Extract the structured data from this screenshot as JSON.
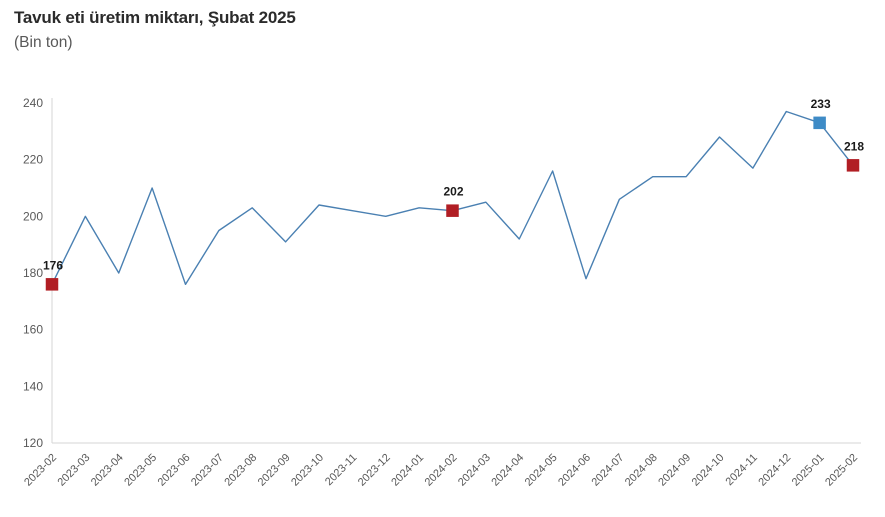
{
  "header": {
    "title": "Tavuk eti üretim miktarı, Şubat 2025",
    "subtitle": "(Bin ton)"
  },
  "chart_data": {
    "type": "line",
    "title": "Tavuk eti üretim miktarı, Şubat 2025",
    "subtitle": "(Bin ton)",
    "x": [
      "2023-02",
      "2023-03",
      "2023-04",
      "2023-05",
      "2023-06",
      "2023-07",
      "2023-08",
      "2023-09",
      "2023-10",
      "2023-11",
      "2023-12",
      "2024-01",
      "2024-02",
      "2024-03",
      "2024-04",
      "2024-05",
      "2024-06",
      "2024-07",
      "2024-08",
      "2024-09",
      "2024-10",
      "2024-11",
      "2024-12",
      "2025-01",
      "2025-02"
    ],
    "series": [
      {
        "name": "Tavuk eti üretim miktarı (bin ton)",
        "values": [
          176,
          200,
          180,
          210,
          176,
          195,
          203,
          191,
          204,
          202,
          200,
          203,
          202,
          205,
          192,
          216,
          178,
          206,
          214,
          214,
          228,
          217,
          237,
          233,
          218
        ]
      }
    ],
    "ylim": [
      120,
      240
    ],
    "yticks": [
      120,
      140,
      160,
      180,
      200,
      220,
      240
    ],
    "grid": false,
    "legend": "none",
    "line_color": "#4a80b2",
    "axis_color": "#d6d6d6",
    "tick_label_color": "#595959",
    "data_label_color": "#1a1a1a",
    "highlight_points": [
      {
        "x": "2023-02",
        "value": 176,
        "label": "176",
        "color": "#b11e24"
      },
      {
        "x": "2024-02",
        "value": 202,
        "label": "202",
        "color": "#b11e24"
      },
      {
        "x": "2025-01",
        "value": 233,
        "label": "233",
        "color": "#3e8bc6"
      },
      {
        "x": "2025-02",
        "value": 218,
        "label": "218",
        "color": "#b11e24"
      }
    ]
  }
}
